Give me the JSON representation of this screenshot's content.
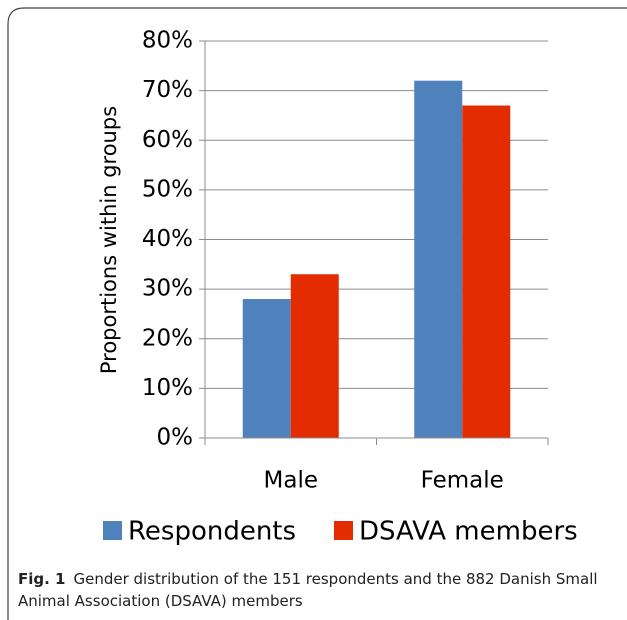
{
  "chart_data": {
    "type": "bar",
    "categories": [
      "Male",
      "Female"
    ],
    "series": [
      {
        "name": "Respondents",
        "color": "#4f81bd",
        "values": [
          28,
          72
        ]
      },
      {
        "name": "DSAVA members",
        "color": "#e32d00",
        "values": [
          33,
          67
        ]
      }
    ],
    "ylabel": "Proportions within groups",
    "ylim": [
      0,
      80
    ],
    "yticks": [
      {
        "value": 0,
        "label": "0%"
      },
      {
        "value": 10,
        "label": "10%"
      },
      {
        "value": 20,
        "label": "20%"
      },
      {
        "value": 30,
        "label": "30%"
      },
      {
        "value": 40,
        "label": "40%"
      },
      {
        "value": 50,
        "label": "50%"
      },
      {
        "value": 60,
        "label": "60%"
      },
      {
        "value": 70,
        "label": "70%"
      },
      {
        "value": 80,
        "label": "80%"
      }
    ],
    "grid": true,
    "legend": "bottom"
  },
  "caption": {
    "label": "Fig. 1",
    "text": "Gender distribution of the 151 respondents and the 882 Danish Small Animal Association (DSAVA) members"
  }
}
